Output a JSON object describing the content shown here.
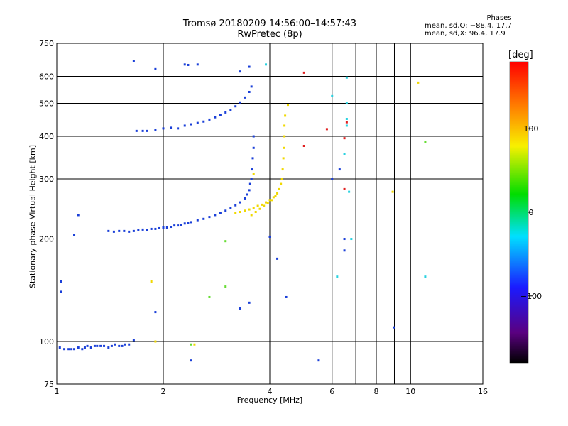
{
  "title_line1": "Tromsø 20180209 14:56:00–14:57:43",
  "title_line2": "RwPretec (8p)",
  "stats": {
    "heading": "Phases",
    "line_o": "mean, sd,O: −88.4, 17.7",
    "line_x": "mean, sd,X:  96.4, 17.9"
  },
  "colorbar": {
    "unit": "[deg]",
    "ticks": [
      "100",
      "0",
      "−100"
    ],
    "tick_values": [
      100,
      0,
      -100
    ],
    "range": [
      -180,
      180
    ],
    "colormap": "rainbow (black → purple → blue → cyan → green → yellow → orange → red)"
  },
  "chart_data": {
    "type": "scatter",
    "title": "Tromsø 20180209 14:56:00–14:57:43",
    "subtitle": "RwPretec (8p)",
    "xlabel": "Frequency [MHz]",
    "ylabel": "Stationary phase Virtual Height [km]",
    "x_scale": "log",
    "y_scale": "log",
    "xlim": [
      1,
      16
    ],
    "ylim": [
      75,
      750
    ],
    "x_ticks": [
      1,
      2,
      4,
      6,
      8,
      10,
      16
    ],
    "x_tick_labels": [
      "1",
      "2",
      "4",
      "6",
      "8",
      "10",
      "16"
    ],
    "x_gridlines": [
      2,
      4,
      6,
      7,
      8,
      9,
      10
    ],
    "y_ticks": [
      75,
      100,
      200,
      300,
      400,
      500,
      600,
      750
    ],
    "y_tick_labels": [
      "75",
      "100",
      "200",
      "300",
      "400",
      "500",
      "600",
      "750"
    ],
    "grid": true,
    "color_encoding": "phase [deg]",
    "series": [
      {
        "name": "",
        "phase": -100,
        "color": "#1a3fd8",
        "points": [
          [
            1.02,
            96
          ],
          [
            1.05,
            95
          ],
          [
            1.08,
            95
          ],
          [
            1.1,
            95
          ],
          [
            1.12,
            95
          ],
          [
            1.15,
            96
          ],
          [
            1.18,
            95
          ],
          [
            1.2,
            96
          ],
          [
            1.22,
            97
          ],
          [
            1.25,
            96
          ],
          [
            1.28,
            97
          ],
          [
            1.3,
            97
          ],
          [
            1.33,
            97
          ],
          [
            1.36,
            97
          ],
          [
            1.4,
            96
          ],
          [
            1.43,
            97
          ],
          [
            1.46,
            98
          ],
          [
            1.5,
            97
          ],
          [
            1.53,
            97
          ],
          [
            1.56,
            98
          ],
          [
            1.6,
            98
          ],
          [
            1.65,
            101
          ],
          [
            1.12,
            205
          ],
          [
            1.4,
            211
          ],
          [
            1.45,
            210
          ],
          [
            1.5,
            211
          ],
          [
            1.55,
            211
          ],
          [
            1.6,
            210
          ],
          [
            1.65,
            211
          ],
          [
            1.7,
            212
          ],
          [
            1.75,
            213
          ],
          [
            1.8,
            212
          ],
          [
            1.85,
            214
          ],
          [
            1.9,
            214
          ],
          [
            1.95,
            215
          ],
          [
            2.0,
            216
          ],
          [
            2.05,
            216
          ],
          [
            2.1,
            217
          ],
          [
            2.15,
            219
          ],
          [
            2.2,
            219
          ],
          [
            2.25,
            220
          ],
          [
            2.3,
            222
          ],
          [
            2.35,
            223
          ],
          [
            2.4,
            224
          ],
          [
            2.5,
            227
          ],
          [
            2.6,
            229
          ],
          [
            2.7,
            232
          ],
          [
            2.8,
            235
          ],
          [
            2.9,
            238
          ],
          [
            3.0,
            242
          ],
          [
            3.1,
            246
          ],
          [
            3.2,
            251
          ],
          [
            3.3,
            256
          ],
          [
            3.4,
            263
          ],
          [
            3.45,
            270
          ],
          [
            3.5,
            278
          ],
          [
            3.52,
            290
          ],
          [
            3.55,
            300
          ],
          [
            3.57,
            320
          ],
          [
            3.58,
            345
          ],
          [
            3.6,
            370
          ],
          [
            3.6,
            400
          ],
          [
            1.68,
            415
          ],
          [
            1.75,
            415
          ],
          [
            1.8,
            415
          ],
          [
            1.9,
            418
          ],
          [
            2.0,
            422
          ],
          [
            2.1,
            424
          ],
          [
            2.2,
            422
          ],
          [
            2.3,
            430
          ],
          [
            2.4,
            434
          ],
          [
            2.5,
            438
          ],
          [
            2.6,
            442
          ],
          [
            2.7,
            448
          ],
          [
            2.8,
            455
          ],
          [
            2.9,
            462
          ],
          [
            3.0,
            470
          ],
          [
            3.1,
            478
          ],
          [
            3.2,
            490
          ],
          [
            3.3,
            503
          ],
          [
            3.4,
            520
          ],
          [
            3.5,
            540
          ],
          [
            3.55,
            560
          ],
          [
            1.65,
            665
          ],
          [
            1.9,
            630
          ],
          [
            2.3,
            650
          ],
          [
            2.35,
            648
          ],
          [
            2.5,
            650
          ],
          [
            3.3,
            620
          ],
          [
            3.5,
            640
          ],
          [
            1.03,
            150
          ],
          [
            1.03,
            140
          ],
          [
            1.15,
            235
          ],
          [
            3.3,
            125
          ],
          [
            3.5,
            130
          ],
          [
            4.0,
            203
          ],
          [
            4.2,
            175
          ],
          [
            4.45,
            135
          ],
          [
            6.0,
            300
          ],
          [
            6.3,
            320
          ],
          [
            6.5,
            200
          ],
          [
            6.5,
            185
          ],
          [
            9.0,
            110
          ],
          [
            1.9,
            122
          ],
          [
            2.4,
            88
          ],
          [
            5.5,
            88
          ]
        ]
      },
      {
        "name": "",
        "phase": 100,
        "color": "#f0d800",
        "points": [
          [
            3.2,
            238
          ],
          [
            3.3,
            240
          ],
          [
            3.4,
            242
          ],
          [
            3.5,
            244
          ],
          [
            3.6,
            247
          ],
          [
            3.7,
            250
          ],
          [
            3.8,
            252
          ],
          [
            3.9,
            256
          ],
          [
            4.0,
            260
          ],
          [
            4.1,
            265
          ],
          [
            4.2,
            272
          ],
          [
            4.25,
            280
          ],
          [
            4.3,
            290
          ],
          [
            4.33,
            300
          ],
          [
            4.35,
            320
          ],
          [
            4.37,
            345
          ],
          [
            4.38,
            370
          ],
          [
            4.4,
            400
          ],
          [
            4.4,
            430
          ],
          [
            4.42,
            460
          ],
          [
            3.55,
            235
          ],
          [
            3.65,
            240
          ],
          [
            3.75,
            245
          ],
          [
            3.85,
            250
          ],
          [
            3.95,
            255
          ],
          [
            4.05,
            260
          ],
          [
            4.15,
            268
          ],
          [
            1.85,
            150
          ],
          [
            2.45,
            98
          ],
          [
            3.6,
            310
          ],
          [
            4.5,
            495
          ],
          [
            10.5,
            575
          ],
          [
            8.9,
            275
          ],
          [
            1.9,
            100
          ]
        ]
      },
      {
        "name": "",
        "phase": 170,
        "color": "#e02020",
        "points": [
          [
            5.0,
            615
          ],
          [
            5.0,
            375
          ],
          [
            5.8,
            420
          ],
          [
            6.5,
            280
          ],
          [
            6.5,
            395
          ],
          [
            6.6,
            440
          ]
        ]
      },
      {
        "name": "",
        "phase": 50,
        "color": "#66dd33",
        "points": [
          [
            2.4,
            98
          ],
          [
            2.7,
            135
          ],
          [
            3.0,
            145
          ],
          [
            11.0,
            385
          ],
          [
            3.0,
            197
          ]
        ]
      },
      {
        "name": "",
        "phase": -50,
        "color": "#2ad2e0",
        "points": [
          [
            6.0,
            525
          ],
          [
            6.6,
            595
          ],
          [
            6.6,
            500
          ],
          [
            6.6,
            450
          ],
          [
            6.6,
            430
          ],
          [
            6.5,
            355
          ],
          [
            6.7,
            275
          ],
          [
            6.8,
            200
          ],
          [
            3.9,
            650
          ],
          [
            11.0,
            155
          ],
          [
            6.2,
            155
          ]
        ]
      }
    ]
  }
}
